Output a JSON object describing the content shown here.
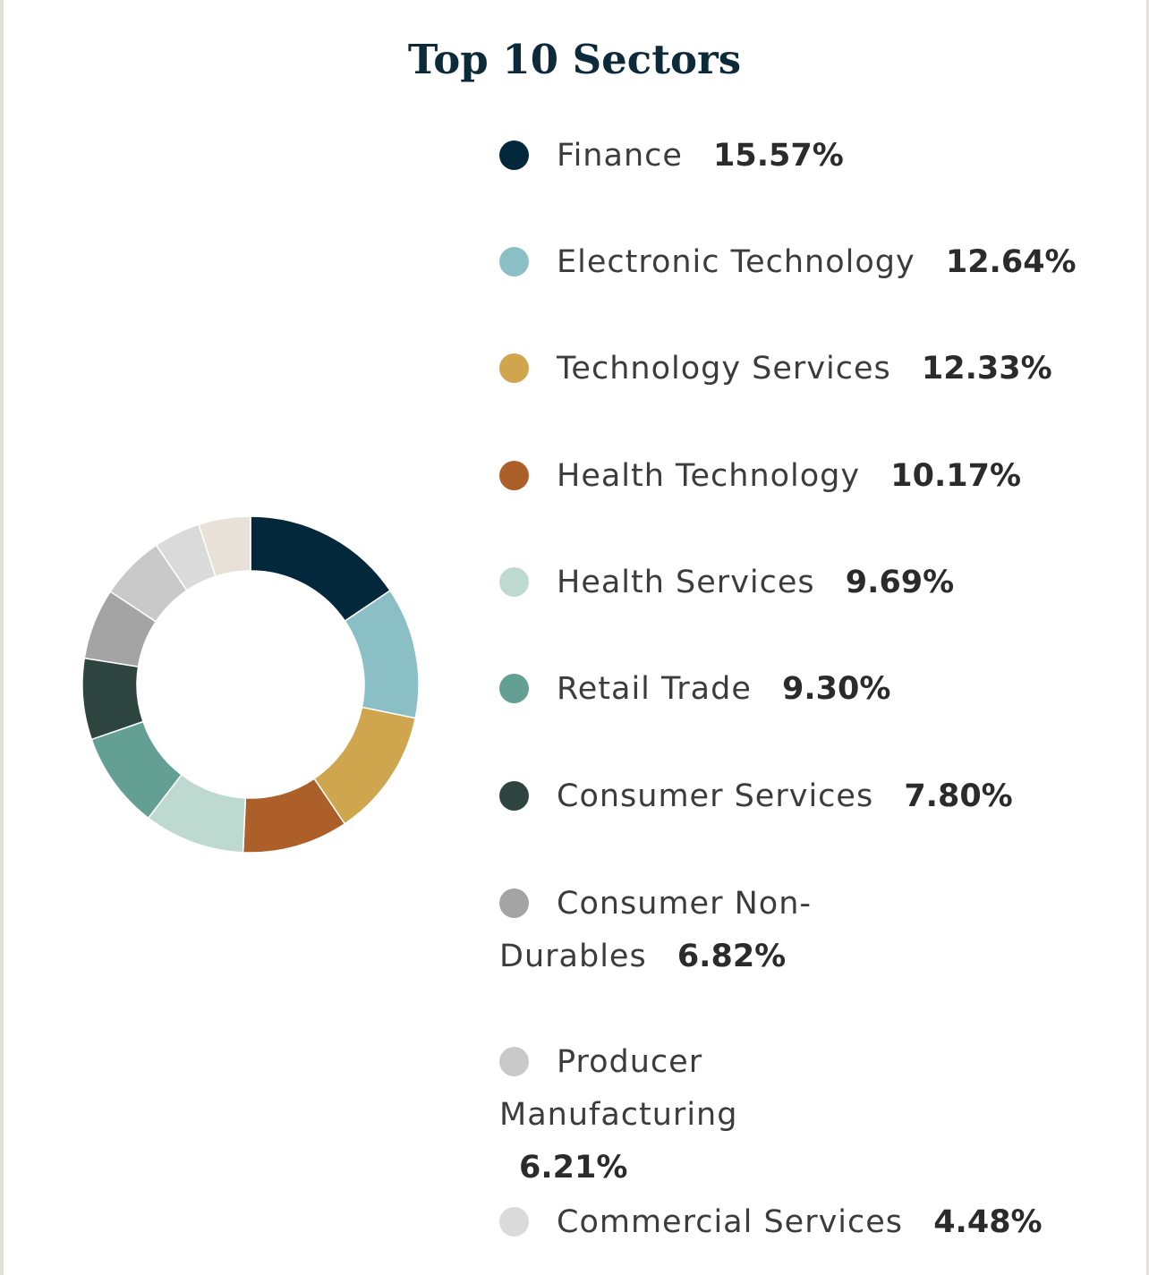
{
  "chart_data": {
    "type": "pie",
    "title": "Top 10 Sectors",
    "categories": [
      "Finance",
      "Electronic Technology",
      "Technology Services",
      "Health Technology",
      "Health Services",
      "Retail Trade",
      "Consumer Services",
      "Consumer Non-Durables",
      "Producer Manufacturing",
      "Commercial Services"
    ],
    "values": [
      15.57,
      12.64,
      12.33,
      10.17,
      9.69,
      9.3,
      7.8,
      6.82,
      6.21,
      4.48
    ],
    "value_labels": [
      "15.57%",
      "12.64%",
      "12.33%",
      "10.17%",
      "9.69%",
      "9.30%",
      "7.80%",
      "6.82%",
      "6.21%",
      "4.48%"
    ],
    "colors": [
      "#03283b",
      "#8ac0c5",
      "#cfa54d",
      "#ad5f29",
      "#bed9cf",
      "#649f94",
      "#2d453e",
      "#a4a4a4",
      "#c9c9c9",
      "#dadada",
      "#e7e1d7"
    ],
    "donut": true,
    "legend_position": "right"
  }
}
